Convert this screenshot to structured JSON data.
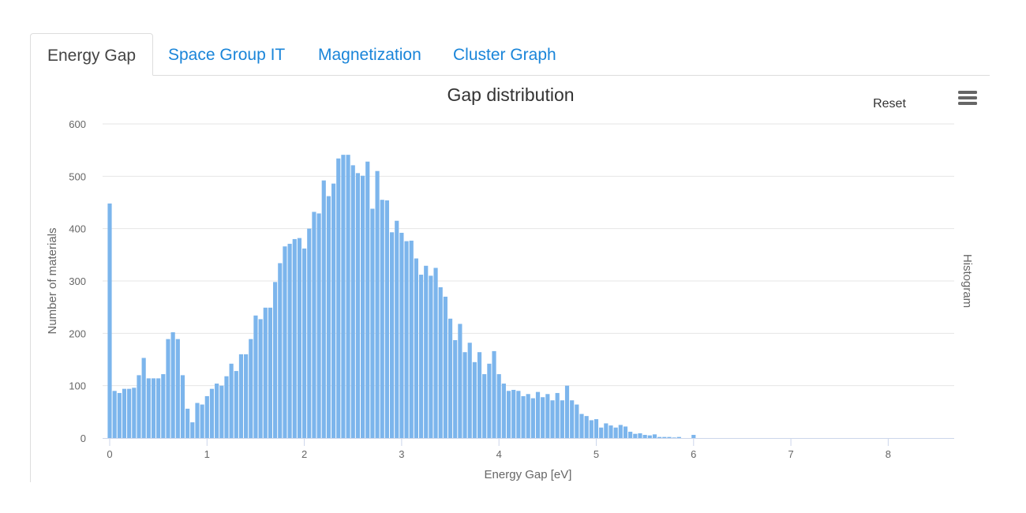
{
  "tabs": [
    {
      "label": "Energy Gap",
      "active": true
    },
    {
      "label": "Space Group IT",
      "active": false
    },
    {
      "label": "Magnetization",
      "active": false
    },
    {
      "label": "Cluster Graph",
      "active": false
    }
  ],
  "chart_controls": {
    "reset_label": "Reset",
    "menu_icon": "hamburger-menu-icon"
  },
  "chart_data": {
    "type": "bar",
    "title": "Gap distribution",
    "xlabel": "Energy Gap [eV]",
    "ylabel": "Number of materials",
    "right_label": "Histogram",
    "xlim": [
      -0.075,
      8.7
    ],
    "ylim": [
      0,
      600
    ],
    "xticks": [
      0,
      1,
      2,
      3,
      4,
      5,
      6,
      7,
      8
    ],
    "yticks": [
      0,
      100,
      200,
      300,
      400,
      500,
      600
    ],
    "grid": true,
    "color": "#7cb5ec",
    "bin_width": 0.05,
    "x": [
      0,
      0.05,
      0.1,
      0.15,
      0.2,
      0.25,
      0.3,
      0.35,
      0.4,
      0.45,
      0.5,
      0.55,
      0.6,
      0.65,
      0.7,
      0.75,
      0.8,
      0.85,
      0.9,
      0.95,
      1,
      1.05,
      1.1,
      1.15,
      1.2,
      1.25,
      1.3,
      1.35,
      1.4,
      1.45,
      1.5,
      1.55,
      1.6,
      1.65,
      1.7,
      1.75,
      1.8,
      1.85,
      1.9,
      1.95,
      2,
      2.05,
      2.1,
      2.15,
      2.2,
      2.25,
      2.3,
      2.35,
      2.4,
      2.45,
      2.5,
      2.55,
      2.6,
      2.65,
      2.7,
      2.75,
      2.8,
      2.85,
      2.9,
      2.95,
      3,
      3.05,
      3.1,
      3.15,
      3.2,
      3.25,
      3.3,
      3.35,
      3.4,
      3.45,
      3.5,
      3.55,
      3.6,
      3.65,
      3.7,
      3.75,
      3.8,
      3.85,
      3.9,
      3.95,
      4,
      4.05,
      4.1,
      4.15,
      4.2,
      4.25,
      4.3,
      4.35,
      4.4,
      4.45,
      4.5,
      4.55,
      4.6,
      4.65,
      4.7,
      4.75,
      4.8,
      4.85,
      4.9,
      4.95,
      5,
      5.05,
      5.1,
      5.15,
      5.2,
      5.25,
      5.3,
      5.35,
      5.4,
      5.45,
      5.5,
      5.55,
      5.6,
      5.65,
      5.7,
      5.75,
      5.8,
      5.85,
      5.9,
      5.95,
      6,
      6.05,
      6.1,
      6.15,
      6.2,
      6.25,
      6.3,
      6.35,
      6.4,
      6.45,
      6.5,
      6.55,
      6.6,
      6.65,
      6.7,
      6.75,
      6.8,
      6.85,
      6.9,
      6.95,
      7,
      7.05,
      7.1,
      7.15,
      7.2,
      7.25,
      7.3,
      7.35,
      7.4,
      7.45,
      7.5,
      7.55,
      7.6,
      7.65,
      7.7,
      7.75,
      7.8,
      7.85,
      7.9,
      7.95,
      8,
      8.05,
      8.1,
      8.15,
      8.2,
      8.25,
      8.3,
      8.35,
      8.4,
      8.45,
      8.5,
      8.55,
      8.6
    ],
    "values": [
      448,
      90,
      86,
      94,
      94,
      96,
      120,
      153,
      114,
      114,
      114,
      122,
      189,
      202,
      189,
      120,
      56,
      30,
      67,
      64,
      80,
      94,
      104,
      100,
      118,
      142,
      128,
      160,
      160,
      189,
      234,
      227,
      249,
      249,
      298,
      334,
      366,
      371,
      380,
      382,
      362,
      400,
      432,
      429,
      492,
      462,
      486,
      534,
      541,
      541,
      521,
      506,
      501,
      528,
      438,
      510,
      455,
      454,
      393,
      415,
      392,
      376,
      377,
      343,
      312,
      329,
      310,
      325,
      288,
      270,
      228,
      187,
      218,
      164,
      182,
      145,
      164,
      122,
      142,
      166,
      122,
      104,
      90,
      92,
      90,
      80,
      84,
      76,
      88,
      78,
      84,
      72,
      86,
      72,
      100,
      72,
      64,
      46,
      42,
      34,
      36,
      20,
      28,
      24,
      20,
      25,
      22,
      12,
      8,
      9,
      6,
      5,
      7,
      2,
      2,
      2,
      1,
      2,
      0,
      0,
      6,
      0,
      0,
      0,
      0,
      0,
      0,
      0,
      0,
      0,
      0,
      0,
      0,
      0,
      0,
      0,
      0,
      0,
      0,
      0,
      0,
      0,
      0,
      0,
      0,
      0,
      0,
      0,
      0,
      0,
      0,
      0,
      0,
      0,
      0,
      0,
      0,
      0,
      0,
      0,
      0,
      0,
      0,
      0,
      0,
      0,
      0,
      0,
      0,
      0,
      0,
      0,
      0
    ]
  }
}
